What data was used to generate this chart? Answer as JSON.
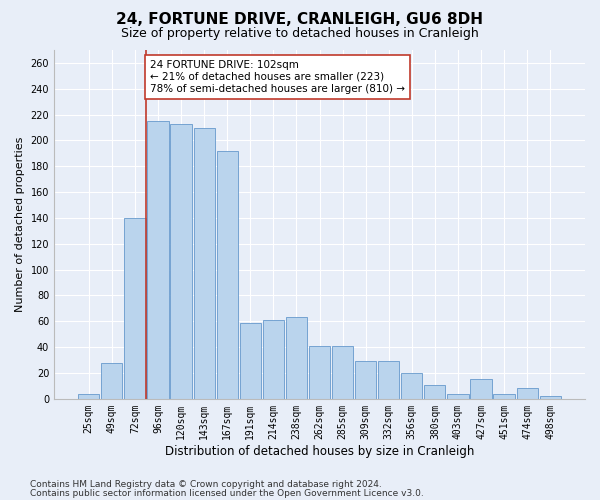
{
  "title1": "24, FORTUNE DRIVE, CRANLEIGH, GU6 8DH",
  "title2": "Size of property relative to detached houses in Cranleigh",
  "xlabel": "Distribution of detached houses by size in Cranleigh",
  "ylabel": "Number of detached properties",
  "categories": [
    "25sqm",
    "49sqm",
    "72sqm",
    "96sqm",
    "120sqm",
    "143sqm",
    "167sqm",
    "191sqm",
    "214sqm",
    "238sqm",
    "262sqm",
    "285sqm",
    "309sqm",
    "332sqm",
    "356sqm",
    "380sqm",
    "403sqm",
    "427sqm",
    "451sqm",
    "474sqm",
    "498sqm"
  ],
  "values": [
    4,
    28,
    140,
    215,
    213,
    210,
    192,
    59,
    61,
    63,
    41,
    41,
    29,
    29,
    20,
    11,
    4,
    15,
    4,
    8,
    2
  ],
  "bar_color": "#bad4ed",
  "bar_edge_color": "#6699cc",
  "vline_color": "#c0392b",
  "annotation_text": "24 FORTUNE DRIVE: 102sqm\n← 21% of detached houses are smaller (223)\n78% of semi-detached houses are larger (810) →",
  "annotation_box_color": "white",
  "annotation_box_edge": "#c0392b",
  "ylim": [
    0,
    270
  ],
  "yticks": [
    0,
    20,
    40,
    60,
    80,
    100,
    120,
    140,
    160,
    180,
    200,
    220,
    240,
    260
  ],
  "bg_color": "#e8eef8",
  "plot_bg_color": "#e8eef8",
  "footer1": "Contains HM Land Registry data © Crown copyright and database right 2024.",
  "footer2": "Contains public sector information licensed under the Open Government Licence v3.0.",
  "title1_fontsize": 11,
  "title2_fontsize": 9,
  "xlabel_fontsize": 8.5,
  "ylabel_fontsize": 8,
  "tick_fontsize": 7,
  "annotation_fontsize": 7.5,
  "footer_fontsize": 6.5,
  "vline_bar_index": 3
}
